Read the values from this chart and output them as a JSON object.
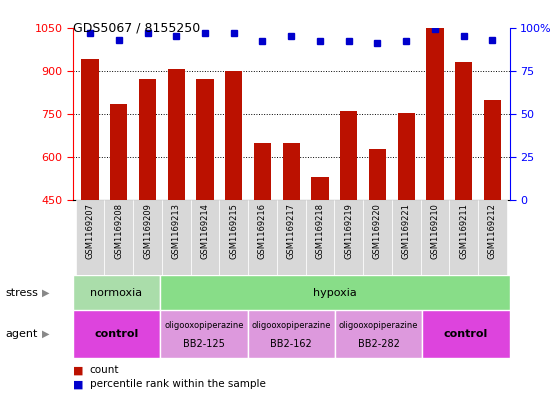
{
  "title": "GDS5067 / 8155250",
  "samples": [
    "GSM1169207",
    "GSM1169208",
    "GSM1169209",
    "GSM1169213",
    "GSM1169214",
    "GSM1169215",
    "GSM1169216",
    "GSM1169217",
    "GSM1169218",
    "GSM1169219",
    "GSM1169220",
    "GSM1169221",
    "GSM1169210",
    "GSM1169211",
    "GSM1169212"
  ],
  "counts": [
    940,
    785,
    870,
    905,
    870,
    900,
    650,
    650,
    530,
    760,
    630,
    755,
    1050,
    930,
    800
  ],
  "percentiles": [
    97,
    93,
    97,
    95,
    97,
    97,
    92,
    95,
    92,
    92,
    91,
    92,
    99,
    95,
    93
  ],
  "ylim": [
    450,
    1050
  ],
  "yticks": [
    450,
    600,
    750,
    900,
    1050
  ],
  "right_yticks": [
    0,
    25,
    50,
    75,
    100
  ],
  "right_ylim": [
    0,
    100
  ],
  "bar_color": "#bb1100",
  "dot_color": "#0000cc",
  "bg_color": "#ffffff",
  "stress_groups": [
    {
      "label": "normoxia",
      "start": 0,
      "end": 3,
      "color": "#aaddaa"
    },
    {
      "label": "hypoxia",
      "start": 3,
      "end": 15,
      "color": "#88dd88"
    }
  ],
  "agent_groups": [
    {
      "label": "control",
      "start": 0,
      "end": 3,
      "color": "#dd44dd",
      "text_lines": [
        "control"
      ],
      "bold": true
    },
    {
      "label": "BB2-125",
      "start": 3,
      "end": 6,
      "color": "#dd99dd",
      "text_lines": [
        "oligooxopiperazine",
        "BB2-125"
      ],
      "bold": false
    },
    {
      "label": "BB2-162",
      "start": 6,
      "end": 9,
      "color": "#dd99dd",
      "text_lines": [
        "oligooxopiperazine",
        "BB2-162"
      ],
      "bold": false
    },
    {
      "label": "BB2-282",
      "start": 9,
      "end": 12,
      "color": "#dd99dd",
      "text_lines": [
        "oligooxopiperazine",
        "BB2-282"
      ],
      "bold": false
    },
    {
      "label": "control",
      "start": 12,
      "end": 15,
      "color": "#dd44dd",
      "text_lines": [
        "control"
      ],
      "bold": true
    }
  ]
}
